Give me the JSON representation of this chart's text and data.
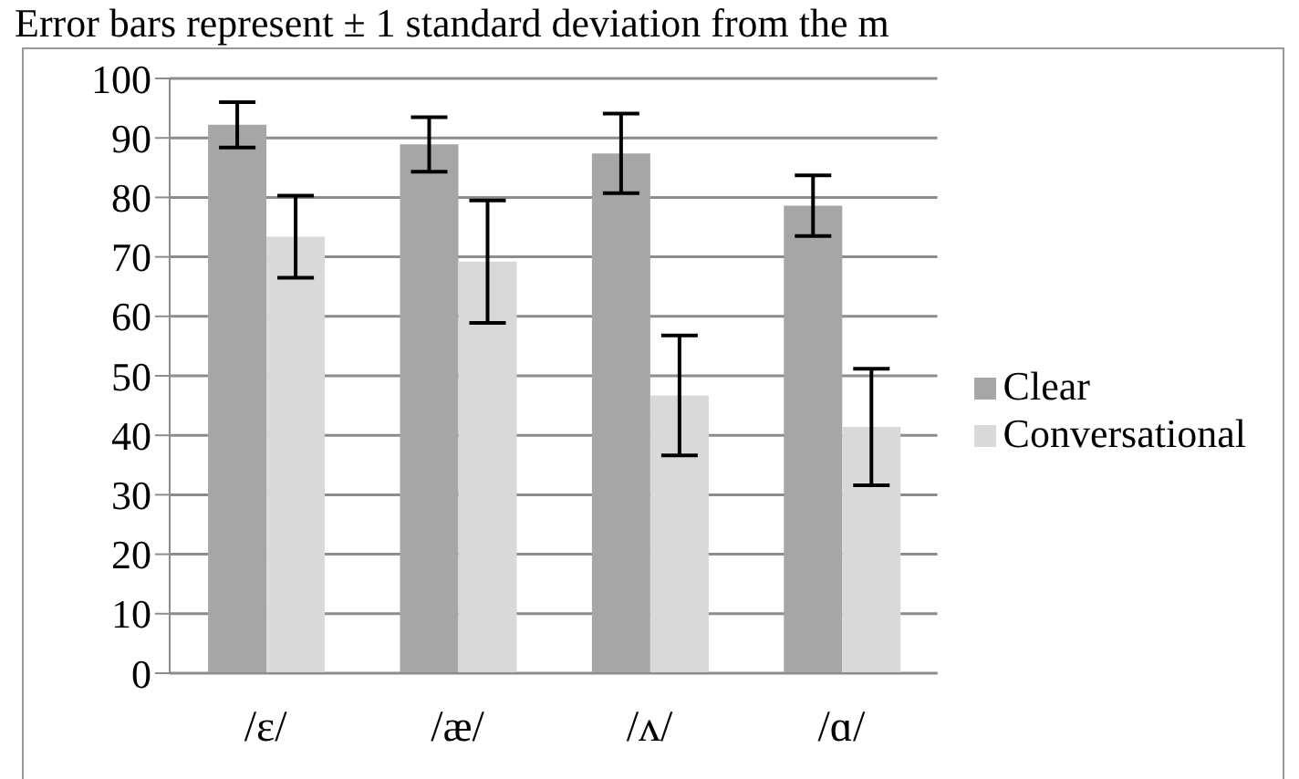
{
  "chart_data": {
    "type": "bar",
    "title": "Error bars represent ± 1 standard deviation from the m",
    "categories": [
      "/ε/",
      "/æ/",
      "/ʌ/",
      "/ɑ/"
    ],
    "series": [
      {
        "name": "Clear",
        "color": "#a6a6a6",
        "values": [
          92.2,
          88.9,
          87.4,
          78.6
        ],
        "errors": [
          3.8,
          4.6,
          6.7,
          5.1
        ]
      },
      {
        "name": "Conversational",
        "color": "#d9d9d9",
        "values": [
          73.4,
          69.2,
          46.7,
          41.4
        ],
        "errors": [
          6.9,
          10.3,
          10.1,
          9.8
        ]
      }
    ],
    "ylim": [
      0,
      100
    ],
    "yticks": [
      0,
      10,
      20,
      30,
      40,
      50,
      60,
      70,
      80,
      90,
      100
    ],
    "grid": "y",
    "legend": "right"
  }
}
